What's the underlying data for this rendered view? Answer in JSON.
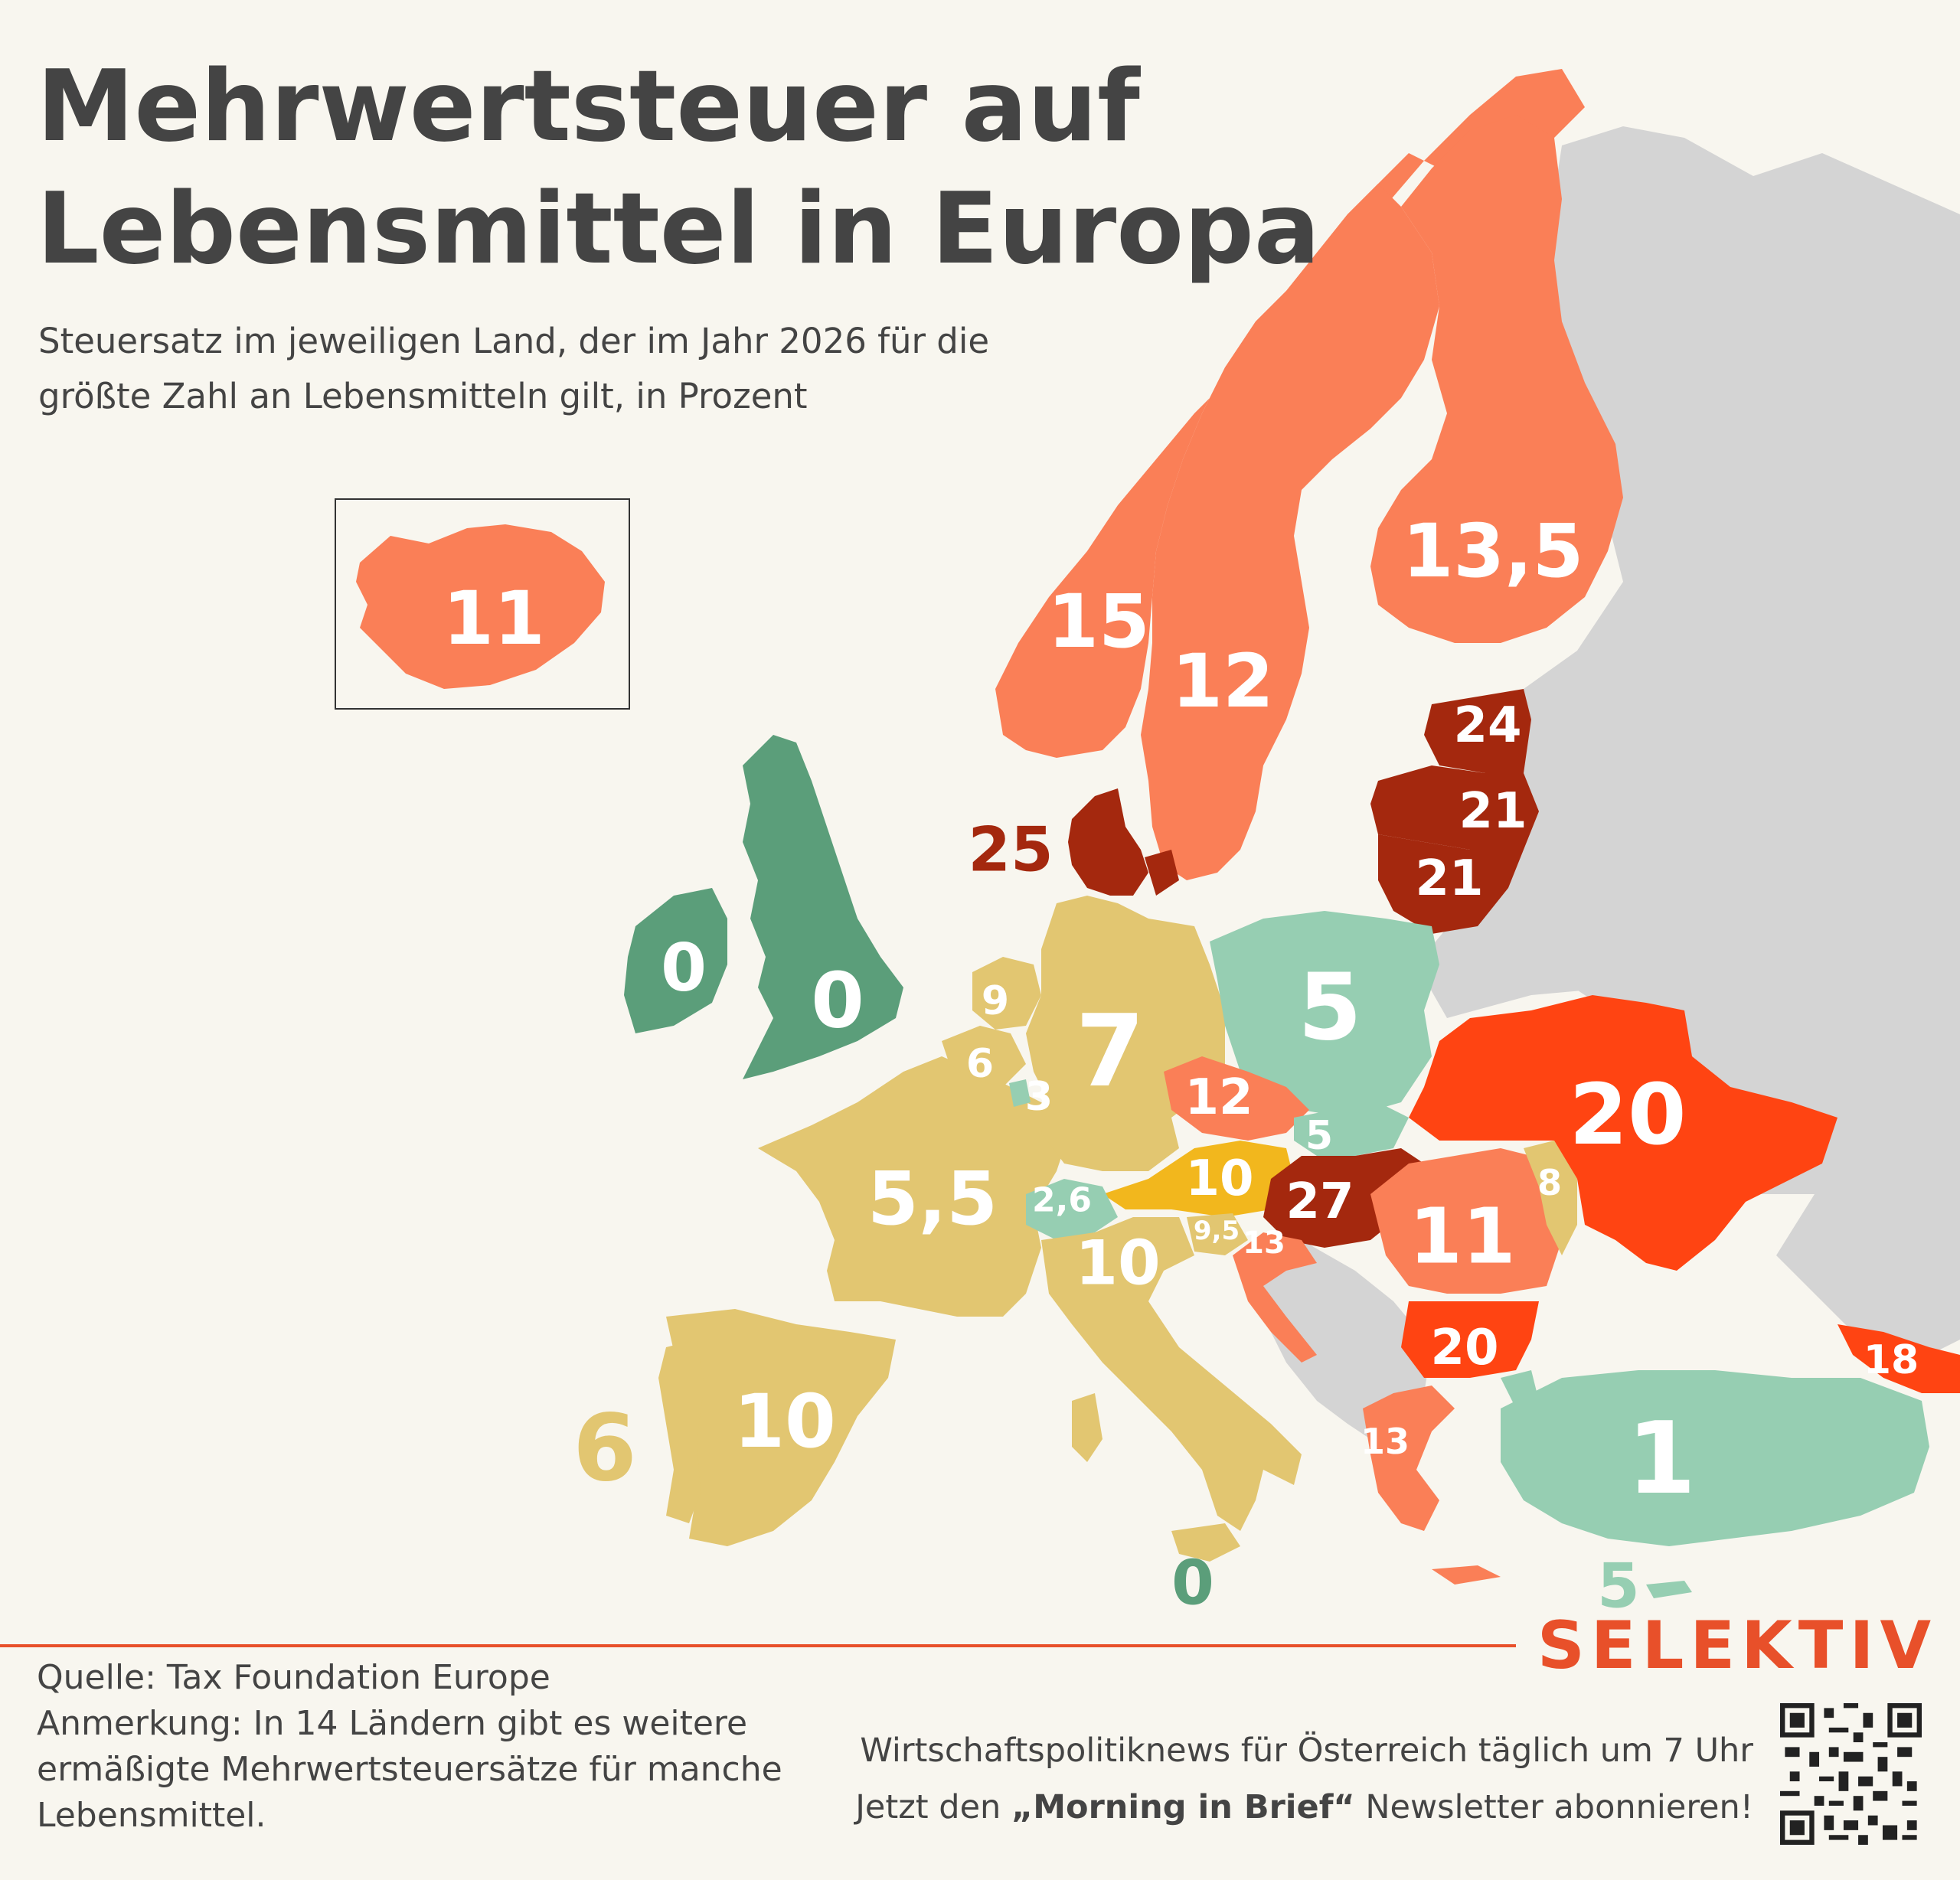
{
  "header": {
    "title_line1": "Mehrwertsteuer auf",
    "title_line2": "Lebensmittel in Europa",
    "subtitle_line1": "Steuersatz im jeweiligen Land, der im Jahr 2026 für die",
    "subtitle_line2": "größte Zahl an Lebensmitteln gilt, in Prozent"
  },
  "colors": {
    "background": "#f8f6ef",
    "non_eu_gray": "#d4d4d4",
    "green_dark": "#5b9e7a",
    "green_light": "#96ceb2",
    "sand": "#e2c671",
    "yellow": "#f2b71d",
    "salmon": "#fa7f57",
    "red_orange": "#ff4412",
    "dark_red": "#a4280e",
    "brand": "#e8502a"
  },
  "map": {
    "countries": [
      {
        "id": "iceland",
        "rate": "11",
        "color": "salmon"
      },
      {
        "id": "norway",
        "rate": "15",
        "color": "salmon"
      },
      {
        "id": "sweden",
        "rate": "12",
        "color": "salmon"
      },
      {
        "id": "finland",
        "rate": "13,5",
        "color": "salmon"
      },
      {
        "id": "estonia",
        "rate": "24",
        "color": "dark_red"
      },
      {
        "id": "latvia",
        "rate": "21",
        "color": "dark_red"
      },
      {
        "id": "lithuania",
        "rate": "21",
        "color": "dark_red"
      },
      {
        "id": "denmark",
        "rate": "25",
        "color": "dark_red"
      },
      {
        "id": "ireland",
        "rate": "0",
        "color": "green_dark"
      },
      {
        "id": "united-kingdom",
        "rate": "0",
        "color": "green_dark"
      },
      {
        "id": "netherlands",
        "rate": "9",
        "color": "sand"
      },
      {
        "id": "belgium",
        "rate": "6",
        "color": "sand"
      },
      {
        "id": "luxembourg",
        "rate": "3",
        "color": "green_light"
      },
      {
        "id": "germany",
        "rate": "7",
        "color": "sand"
      },
      {
        "id": "poland",
        "rate": "5",
        "color": "green_light"
      },
      {
        "id": "czechia",
        "rate": "12",
        "color": "salmon"
      },
      {
        "id": "slovakia",
        "rate": "5",
        "color": "green_light"
      },
      {
        "id": "austria",
        "rate": "10",
        "color": "yellow"
      },
      {
        "id": "hungary",
        "rate": "27",
        "color": "dark_red"
      },
      {
        "id": "switzerland",
        "rate": "2,6",
        "color": "green_light"
      },
      {
        "id": "france",
        "rate": "5,5",
        "color": "sand"
      },
      {
        "id": "italy",
        "rate": "10",
        "color": "sand"
      },
      {
        "id": "slovenia",
        "rate": "9,5",
        "color": "sand"
      },
      {
        "id": "croatia",
        "rate": "13",
        "color": "salmon"
      },
      {
        "id": "romania",
        "rate": "11",
        "color": "salmon"
      },
      {
        "id": "moldova",
        "rate": "8",
        "color": "sand"
      },
      {
        "id": "ukraine",
        "rate": "20",
        "color": "red_orange"
      },
      {
        "id": "bulgaria",
        "rate": "20",
        "color": "red_orange"
      },
      {
        "id": "georgia",
        "rate": "18",
        "color": "red_orange"
      },
      {
        "id": "greece",
        "rate": "13",
        "color": "salmon"
      },
      {
        "id": "turkey",
        "rate": "1",
        "color": "green_light"
      },
      {
        "id": "spain",
        "rate": "10",
        "color": "sand"
      },
      {
        "id": "portugal",
        "rate": "6",
        "color": "sand"
      },
      {
        "id": "malta",
        "rate": "0",
        "color": "green_dark"
      },
      {
        "id": "cyprus",
        "rate": "5",
        "color": "green_light"
      }
    ]
  },
  "footer": {
    "source": "Quelle: Tax Foundation Europe",
    "note_line1": "Anmerkung: In 14 Ländern gibt es weitere",
    "note_line2": "ermäßigte Mehrwertsteuersätze für manche",
    "note_line3": "Lebensmittel.",
    "promo_line1": "Wirtschaftspolitiknews für Österreich täglich um 7 Uhr",
    "promo_line2_pre": "Jetzt den ",
    "promo_line2_bold": "„Morning in Brief“",
    "promo_line2_post": " Newsletter abonnieren!",
    "brand": "SELEKTIV",
    "qr_icon": "qr-code-icon"
  }
}
